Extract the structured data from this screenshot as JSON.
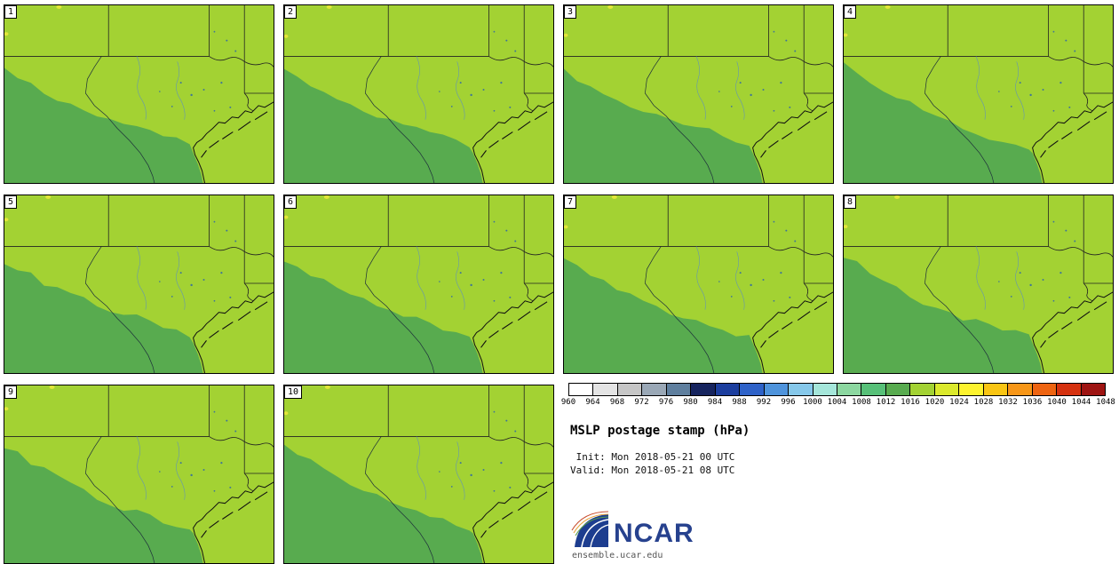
{
  "panels": {
    "members": [
      "1",
      "2",
      "3",
      "4",
      "5",
      "6",
      "7",
      "8",
      "9",
      "10"
    ]
  },
  "map": {
    "fill_light": "#a3d233",
    "fill_dark": "#58ab4f",
    "fill_speck": "#e3e63a",
    "border_color": "#222222",
    "coast_color": "#101010",
    "river_color": "#5d8fc0",
    "lake_color": "#2f66a8"
  },
  "colorbar": {
    "ticks": [
      "960",
      "964",
      "968",
      "972",
      "976",
      "980",
      "984",
      "988",
      "992",
      "996",
      "1000",
      "1004",
      "1008",
      "1012",
      "1016",
      "1020",
      "1024",
      "1028",
      "1032",
      "1036",
      "1040",
      "1044",
      "1048"
    ],
    "colors": [
      "#ffffff",
      "#e4e4e4",
      "#c6c6c6",
      "#9aa8b6",
      "#5f7f9e",
      "#16245e",
      "#1c3e9e",
      "#2e62c8",
      "#4f94dc",
      "#86c8ea",
      "#a5e6da",
      "#8cd7a0",
      "#57c078",
      "#58ab4f",
      "#a3d233",
      "#dbe92c",
      "#fdf32e",
      "#f9c513",
      "#f79617",
      "#ee6411",
      "#d5310f",
      "#9e1412"
    ]
  },
  "legend": {
    "title": "MSLP postage stamp (hPa)",
    "init_line": " Init: Mon 2018-05-21 00 UTC",
    "valid_line": "Valid: Mon 2018-05-21 08 UTC",
    "logo_text": "NCAR",
    "logo_color": "#26418e",
    "site": "ensemble.ucar.edu"
  }
}
